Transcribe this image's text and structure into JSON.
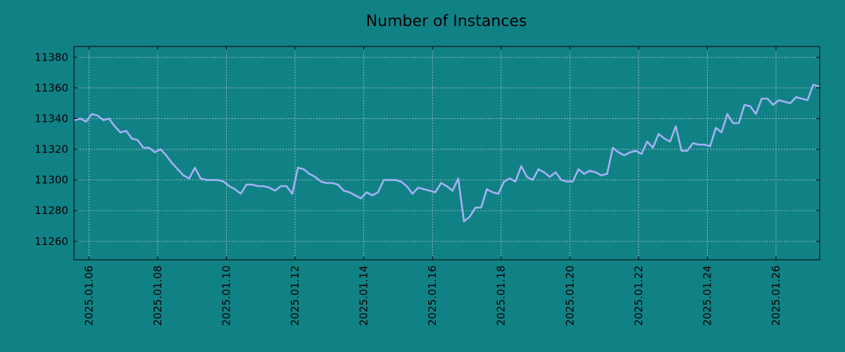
{
  "colors": {
    "background": "#108286",
    "line": "#a5b1f5",
    "grid": "#b9c4c4",
    "axis": "#000000"
  },
  "chart_data": {
    "type": "line",
    "title": "Number of Instances",
    "xlabel": "",
    "ylabel": "",
    "grid": true,
    "xlim": [
      "2025-01-05 13:30",
      "2025-01-27 06:30"
    ],
    "ylim": [
      11248,
      11387
    ],
    "y_ticks": [
      11260,
      11280,
      11300,
      11320,
      11340,
      11360,
      11380
    ],
    "x_ticks": [
      "2025.01.06",
      "2025.01.08",
      "2025.01.10",
      "2025.01.12",
      "2025.01.14",
      "2025.01.16",
      "2025.01.18",
      "2025.01.20",
      "2025.01.22",
      "2025.01.24",
      "2025.01.26"
    ],
    "x_tick_dates": [
      "2025-01-06",
      "2025-01-08",
      "2025-01-10",
      "2025-01-12",
      "2025-01-14",
      "2025-01-16",
      "2025-01-18",
      "2025-01-20",
      "2025-01-22",
      "2025-01-24",
      "2025-01-26"
    ],
    "series": [
      {
        "x": [
          "2025-01-05 14:00",
          "2025-01-05 18:00",
          "2025-01-05 22:00",
          "2025-01-06 02:00",
          "2025-01-06 06:00",
          "2025-01-06 10:00",
          "2025-01-06 14:00",
          "2025-01-06 18:00",
          "2025-01-06 22:00",
          "2025-01-07 02:00",
          "2025-01-07 06:00",
          "2025-01-07 10:00",
          "2025-01-07 14:00",
          "2025-01-07 18:00",
          "2025-01-07 22:00",
          "2025-01-08 02:00",
          "2025-01-08 06:00",
          "2025-01-08 10:00",
          "2025-01-08 14:00",
          "2025-01-08 18:00",
          "2025-01-08 22:00",
          "2025-01-09 02:00",
          "2025-01-09 06:00",
          "2025-01-09 10:00",
          "2025-01-09 14:00",
          "2025-01-09 18:00",
          "2025-01-09 22:00",
          "2025-01-10 02:00",
          "2025-01-10 06:00",
          "2025-01-10 10:00",
          "2025-01-10 14:00",
          "2025-01-10 18:00",
          "2025-01-10 22:00",
          "2025-01-11 02:00",
          "2025-01-11 06:00",
          "2025-01-11 10:00",
          "2025-01-11 14:00",
          "2025-01-11 18:00",
          "2025-01-11 22:00",
          "2025-01-12 02:00",
          "2025-01-12 06:00",
          "2025-01-12 10:00",
          "2025-01-12 14:00",
          "2025-01-12 18:00",
          "2025-01-12 22:00",
          "2025-01-13 02:00",
          "2025-01-13 06:00",
          "2025-01-13 10:00",
          "2025-01-13 14:00",
          "2025-01-13 18:00",
          "2025-01-13 22:00",
          "2025-01-14 02:00",
          "2025-01-14 06:00",
          "2025-01-14 10:00",
          "2025-01-14 14:00",
          "2025-01-14 18:00",
          "2025-01-14 22:00",
          "2025-01-15 02:00",
          "2025-01-15 06:00",
          "2025-01-15 10:00",
          "2025-01-15 14:00",
          "2025-01-15 18:00",
          "2025-01-15 22:00",
          "2025-01-16 02:00",
          "2025-01-16 06:00",
          "2025-01-16 10:00",
          "2025-01-16 14:00",
          "2025-01-16 18:00",
          "2025-01-16 22:00",
          "2025-01-17 02:00",
          "2025-01-17 06:00",
          "2025-01-17 10:00",
          "2025-01-17 14:00",
          "2025-01-17 18:00",
          "2025-01-17 22:00",
          "2025-01-18 02:00",
          "2025-01-18 06:00",
          "2025-01-18 10:00",
          "2025-01-18 14:00",
          "2025-01-18 18:00",
          "2025-01-18 22:00",
          "2025-01-19 02:00",
          "2025-01-19 06:00",
          "2025-01-19 10:00",
          "2025-01-19 14:00",
          "2025-01-19 18:00",
          "2025-01-19 22:00",
          "2025-01-20 02:00",
          "2025-01-20 06:00",
          "2025-01-20 10:00",
          "2025-01-20 14:00",
          "2025-01-20 18:00",
          "2025-01-20 22:00",
          "2025-01-21 02:00",
          "2025-01-21 06:00",
          "2025-01-21 10:00",
          "2025-01-21 14:00",
          "2025-01-21 18:00",
          "2025-01-21 22:00",
          "2025-01-22 02:00",
          "2025-01-22 06:00",
          "2025-01-22 10:00",
          "2025-01-22 14:00",
          "2025-01-22 18:00",
          "2025-01-22 22:00",
          "2025-01-23 02:00",
          "2025-01-23 06:00",
          "2025-01-23 10:00",
          "2025-01-23 14:00",
          "2025-01-23 18:00",
          "2025-01-23 22:00",
          "2025-01-24 02:00",
          "2025-01-24 06:00",
          "2025-01-24 10:00",
          "2025-01-24 14:00",
          "2025-01-24 18:00",
          "2025-01-24 22:00",
          "2025-01-25 02:00",
          "2025-01-25 06:00",
          "2025-01-25 10:00",
          "2025-01-25 14:00",
          "2025-01-25 18:00",
          "2025-01-25 22:00",
          "2025-01-26 02:00",
          "2025-01-26 06:00",
          "2025-01-26 10:00",
          "2025-01-26 14:00",
          "2025-01-26 18:00",
          "2025-01-26 22:00",
          "2025-01-27 02:00",
          "2025-01-27 06:00"
        ],
        "y": [
          11339,
          11340,
          11338,
          11343,
          11342,
          11339,
          11340,
          11335,
          11331,
          11332,
          11327,
          11326,
          11321,
          11321,
          11318,
          11320,
          11316,
          11311,
          11307,
          11303,
          11301,
          11308,
          11301,
          11300,
          11300,
          11300,
          11299,
          11296,
          11294,
          11291,
          11297,
          11297,
          11296,
          11296,
          11295,
          11293,
          11296,
          11296,
          11291,
          11308,
          11307,
          11304,
          11302,
          11299,
          11298,
          11298,
          11297,
          11293,
          11292,
          11290,
          11288,
          11292,
          11290,
          11292,
          11300,
          11300,
          11300,
          11299,
          11296,
          11291,
          11295,
          11294,
          11293,
          11292,
          11298,
          11296,
          11293,
          11301,
          11273,
          11276,
          11282,
          11282,
          11294,
          11292,
          11291,
          11299,
          11301,
          11299,
          11309,
          11302,
          11300,
          11307,
          11305,
          11302,
          11305,
          11300,
          11299,
          11299,
          11307,
          11304,
          11306,
          11305,
          11303,
          11304,
          11321,
          11318,
          11316,
          11318,
          11319,
          11317,
          11325,
          11321,
          11330,
          11327,
          11325,
          11335,
          11319,
          11319,
          11324,
          11323,
          11323,
          11322,
          11334,
          11331,
          11343,
          11337,
          11337,
          11349,
          11348,
          11343,
          11353,
          11353,
          11349,
          11352,
          11351,
          11350,
          11354,
          11353,
          11352,
          11362,
          11361
        ]
      }
    ]
  }
}
